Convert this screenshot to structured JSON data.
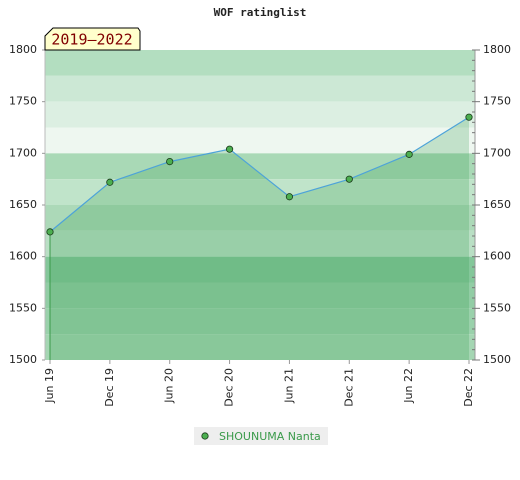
{
  "chart_data": {
    "type": "line",
    "title": "WOF ratinglist",
    "annotation": "2019–2022",
    "categories": [
      "Jun 19",
      "Dec 19",
      "Jun 20",
      "Dec 20",
      "Jun 21",
      "Dec 21",
      "Jun 22",
      "Dec 22"
    ],
    "series": [
      {
        "name": "SHOUNUMA Nanta",
        "color": "#4da3d9",
        "marker_color": "#4caf50",
        "values": [
          1624,
          1672,
          1692,
          1704,
          1658,
          1675,
          1699,
          1735
        ]
      }
    ],
    "ylim": [
      1500,
      1800
    ],
    "yticks": [
      1500,
      1550,
      1600,
      1650,
      1700,
      1750,
      1800
    ],
    "y2lim": [
      1500,
      1800
    ],
    "y2ticks": [
      1500,
      1550,
      1600,
      1650,
      1700,
      1750,
      1800
    ],
    "legend": "bottom"
  }
}
